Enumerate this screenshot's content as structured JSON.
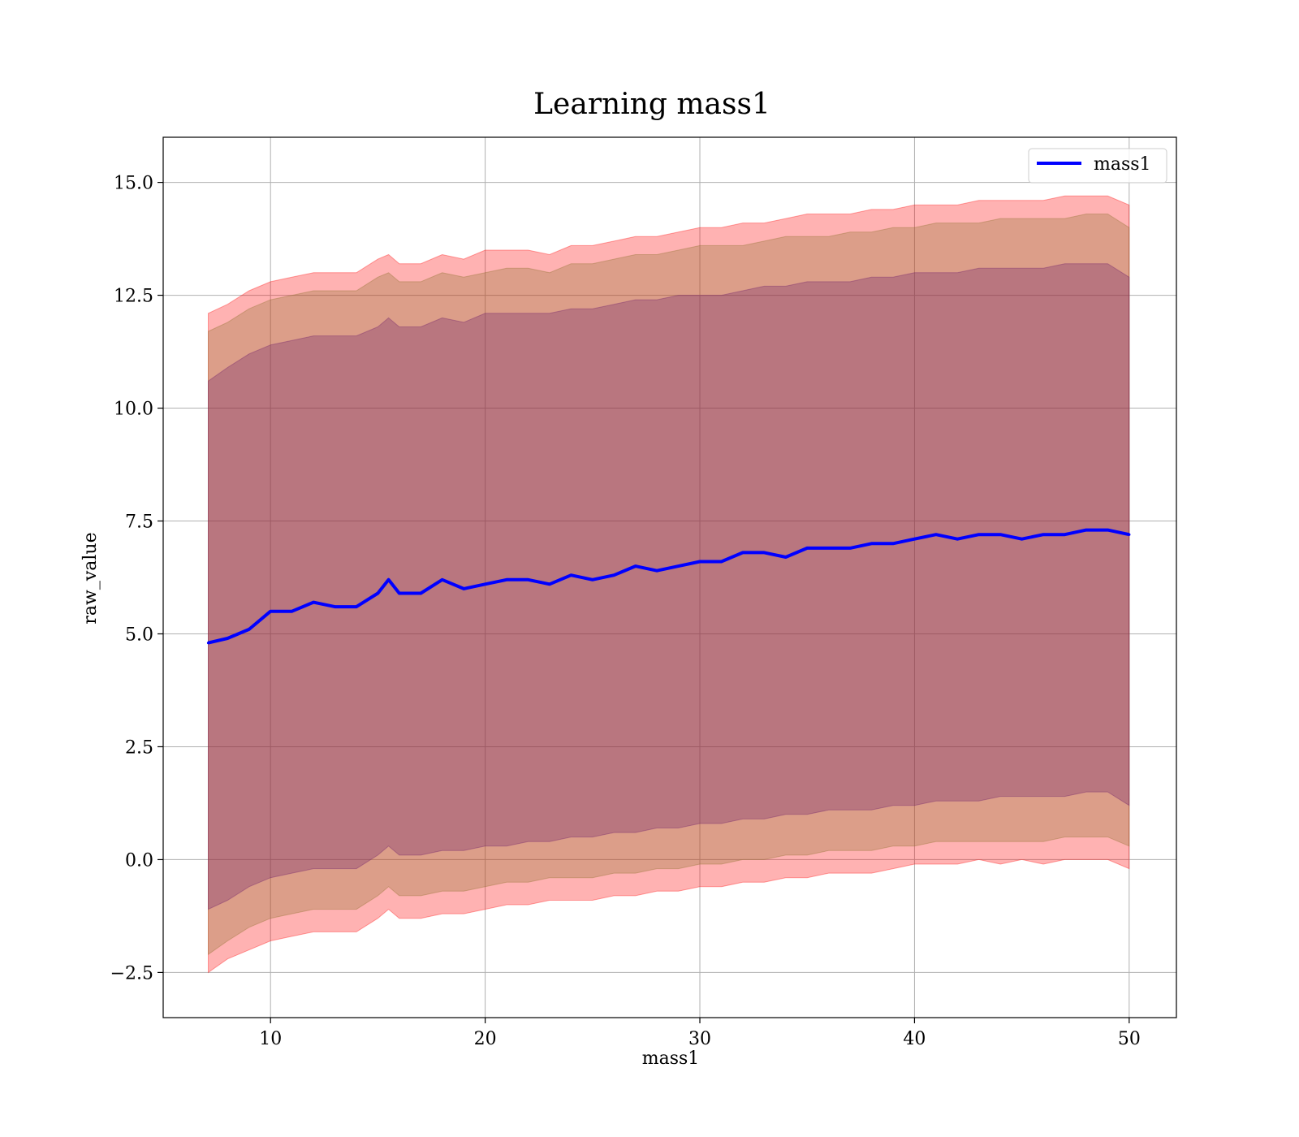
{
  "chart_data": {
    "type": "area",
    "title": "Learning mass1",
    "xlabel": "mass1",
    "ylabel": "raw_value",
    "xlim": [
      5,
      52.2
    ],
    "ylim": [
      -3.5,
      16
    ],
    "xticks": [
      10,
      20,
      30,
      40,
      50
    ],
    "xtick_labels": [
      "10",
      "20",
      "30",
      "40",
      "50"
    ],
    "yticks": [
      -2.5,
      0,
      2.5,
      5,
      7.5,
      10,
      12.5,
      15
    ],
    "ytick_labels": [
      "−2.5",
      "0.0",
      "2.5",
      "5.0",
      "7.5",
      "10.0",
      "12.5",
      "15.0"
    ],
    "grid": true,
    "legend": {
      "position": "top-right",
      "entries": [
        "mass1"
      ]
    },
    "colors": {
      "line": "#0000ff",
      "band_outer": "#ff0000",
      "band_middle": "#8b6f2b",
      "band_inner": "#6b1a6b",
      "grid": "#b0b0b0"
    },
    "x": [
      7.1,
      8,
      9,
      10,
      11,
      12,
      13,
      14,
      15,
      15.5,
      16,
      17,
      18,
      19,
      20,
      21,
      22,
      23,
      24,
      25,
      26,
      27,
      28,
      29,
      30,
      31,
      32,
      33,
      34,
      35,
      36,
      37,
      38,
      39,
      40,
      41,
      42,
      43,
      44,
      45,
      46,
      47,
      48,
      49,
      50
    ],
    "series": [
      {
        "name": "mass1",
        "values": [
          4.8,
          4.9,
          5.1,
          5.5,
          5.5,
          5.7,
          5.6,
          5.6,
          5.9,
          6.2,
          5.9,
          5.9,
          6.2,
          6.0,
          6.1,
          6.2,
          6.2,
          6.1,
          6.3,
          6.2,
          6.3,
          6.5,
          6.4,
          6.5,
          6.6,
          6.6,
          6.8,
          6.8,
          6.7,
          6.9,
          6.9,
          6.9,
          7.0,
          7.0,
          7.1,
          7.2,
          7.1,
          7.2,
          7.2,
          7.1,
          7.2,
          7.2,
          7.3,
          7.3,
          7.2
        ]
      }
    ],
    "bands": [
      {
        "color": "#ff0000",
        "lower": [
          -2.5,
          -2.2,
          -2.0,
          -1.8,
          -1.7,
          -1.6,
          -1.6,
          -1.6,
          -1.3,
          -1.1,
          -1.3,
          -1.3,
          -1.2,
          -1.2,
          -1.1,
          -1.0,
          -1.0,
          -0.9,
          -0.9,
          -0.9,
          -0.8,
          -0.8,
          -0.7,
          -0.7,
          -0.6,
          -0.6,
          -0.5,
          -0.5,
          -0.4,
          -0.4,
          -0.3,
          -0.3,
          -0.3,
          -0.2,
          -0.1,
          -0.1,
          -0.1,
          0.0,
          -0.1,
          0.0,
          -0.1,
          0.0,
          0.0,
          0.0,
          -0.2
        ],
        "upper": [
          12.1,
          12.3,
          12.6,
          12.8,
          12.9,
          13.0,
          13.0,
          13.0,
          13.3,
          13.4,
          13.2,
          13.2,
          13.4,
          13.3,
          13.5,
          13.5,
          13.5,
          13.4,
          13.6,
          13.6,
          13.7,
          13.8,
          13.8,
          13.9,
          14.0,
          14.0,
          14.1,
          14.1,
          14.2,
          14.3,
          14.3,
          14.3,
          14.4,
          14.4,
          14.5,
          14.5,
          14.5,
          14.6,
          14.6,
          14.6,
          14.6,
          14.7,
          14.7,
          14.7,
          14.5
        ]
      },
      {
        "color": "#8b6f2b",
        "lower": [
          -2.1,
          -1.8,
          -1.5,
          -1.3,
          -1.2,
          -1.1,
          -1.1,
          -1.1,
          -0.8,
          -0.6,
          -0.8,
          -0.8,
          -0.7,
          -0.7,
          -0.6,
          -0.5,
          -0.5,
          -0.4,
          -0.4,
          -0.4,
          -0.3,
          -0.3,
          -0.2,
          -0.2,
          -0.1,
          -0.1,
          0.0,
          0.0,
          0.1,
          0.1,
          0.2,
          0.2,
          0.2,
          0.3,
          0.3,
          0.4,
          0.4,
          0.4,
          0.4,
          0.4,
          0.4,
          0.5,
          0.5,
          0.5,
          0.3
        ],
        "upper": [
          11.7,
          11.9,
          12.2,
          12.4,
          12.5,
          12.6,
          12.6,
          12.6,
          12.9,
          13.0,
          12.8,
          12.8,
          13.0,
          12.9,
          13.0,
          13.1,
          13.1,
          13.0,
          13.2,
          13.2,
          13.3,
          13.4,
          13.4,
          13.5,
          13.6,
          13.6,
          13.6,
          13.7,
          13.8,
          13.8,
          13.8,
          13.9,
          13.9,
          14.0,
          14.0,
          14.1,
          14.1,
          14.1,
          14.2,
          14.2,
          14.2,
          14.2,
          14.3,
          14.3,
          14.0
        ]
      },
      {
        "color": "#6b1a6b",
        "lower": [
          -1.1,
          -0.9,
          -0.6,
          -0.4,
          -0.3,
          -0.2,
          -0.2,
          -0.2,
          0.1,
          0.3,
          0.1,
          0.1,
          0.2,
          0.2,
          0.3,
          0.3,
          0.4,
          0.4,
          0.5,
          0.5,
          0.6,
          0.6,
          0.7,
          0.7,
          0.8,
          0.8,
          0.9,
          0.9,
          1.0,
          1.0,
          1.1,
          1.1,
          1.1,
          1.2,
          1.2,
          1.3,
          1.3,
          1.3,
          1.4,
          1.4,
          1.4,
          1.4,
          1.5,
          1.5,
          1.2
        ],
        "upper": [
          10.6,
          10.9,
          11.2,
          11.4,
          11.5,
          11.6,
          11.6,
          11.6,
          11.8,
          12.0,
          11.8,
          11.8,
          12.0,
          11.9,
          12.1,
          12.1,
          12.1,
          12.1,
          12.2,
          12.2,
          12.3,
          12.4,
          12.4,
          12.5,
          12.5,
          12.5,
          12.6,
          12.7,
          12.7,
          12.8,
          12.8,
          12.8,
          12.9,
          12.9,
          13.0,
          13.0,
          13.0,
          13.1,
          13.1,
          13.1,
          13.1,
          13.2,
          13.2,
          13.2,
          12.9
        ]
      }
    ]
  }
}
